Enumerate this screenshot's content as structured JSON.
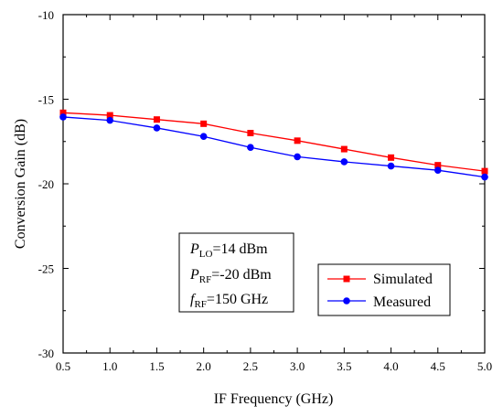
{
  "chart_data": {
    "type": "line",
    "xlabel": "IF Frequency (GHz)",
    "ylabel": "Conversion Gain (dB)",
    "xlim": [
      0.5,
      5.0
    ],
    "ylim": [
      -30,
      -10
    ],
    "x_ticks": [
      0.5,
      1.0,
      1.5,
      2.0,
      2.5,
      3.0,
      3.5,
      4.0,
      4.5,
      5.0
    ],
    "x_tick_labels": [
      "0.5",
      "1.0",
      "1.5",
      "2.0",
      "2.5",
      "3.0",
      "3.5",
      "4.0",
      "4.5",
      "5.0"
    ],
    "y_ticks": [
      -30,
      -25,
      -20,
      -15,
      -10
    ],
    "y_tick_labels": [
      "-30",
      "-25",
      "-20",
      "-15",
      "-10"
    ],
    "grid": false,
    "legend_position": "bottom-right",
    "x": [
      0.5,
      1.0,
      1.5,
      2.0,
      2.5,
      3.0,
      3.5,
      4.0,
      4.5,
      5.0
    ],
    "series": [
      {
        "name": "Simulated",
        "color": "#ff0000",
        "marker": "square",
        "values": [
          -15.8,
          -15.95,
          -16.2,
          -16.45,
          -17.0,
          -17.45,
          -17.95,
          -18.45,
          -18.9,
          -19.25
        ]
      },
      {
        "name": "Measured",
        "color": "#0000ff",
        "marker": "circle",
        "values": [
          -16.05,
          -16.25,
          -16.7,
          -17.2,
          -17.85,
          -18.4,
          -18.7,
          -18.95,
          -19.2,
          -19.6
        ]
      }
    ],
    "annotation": {
      "lines": [
        {
          "main": "P",
          "sub": "LO",
          "rest": "=14 dBm"
        },
        {
          "main": "P",
          "sub": "RF",
          "rest": "=-20 dBm"
        },
        {
          "main": "f",
          "sub": "RF",
          "rest": "=150 GHz"
        }
      ]
    }
  }
}
